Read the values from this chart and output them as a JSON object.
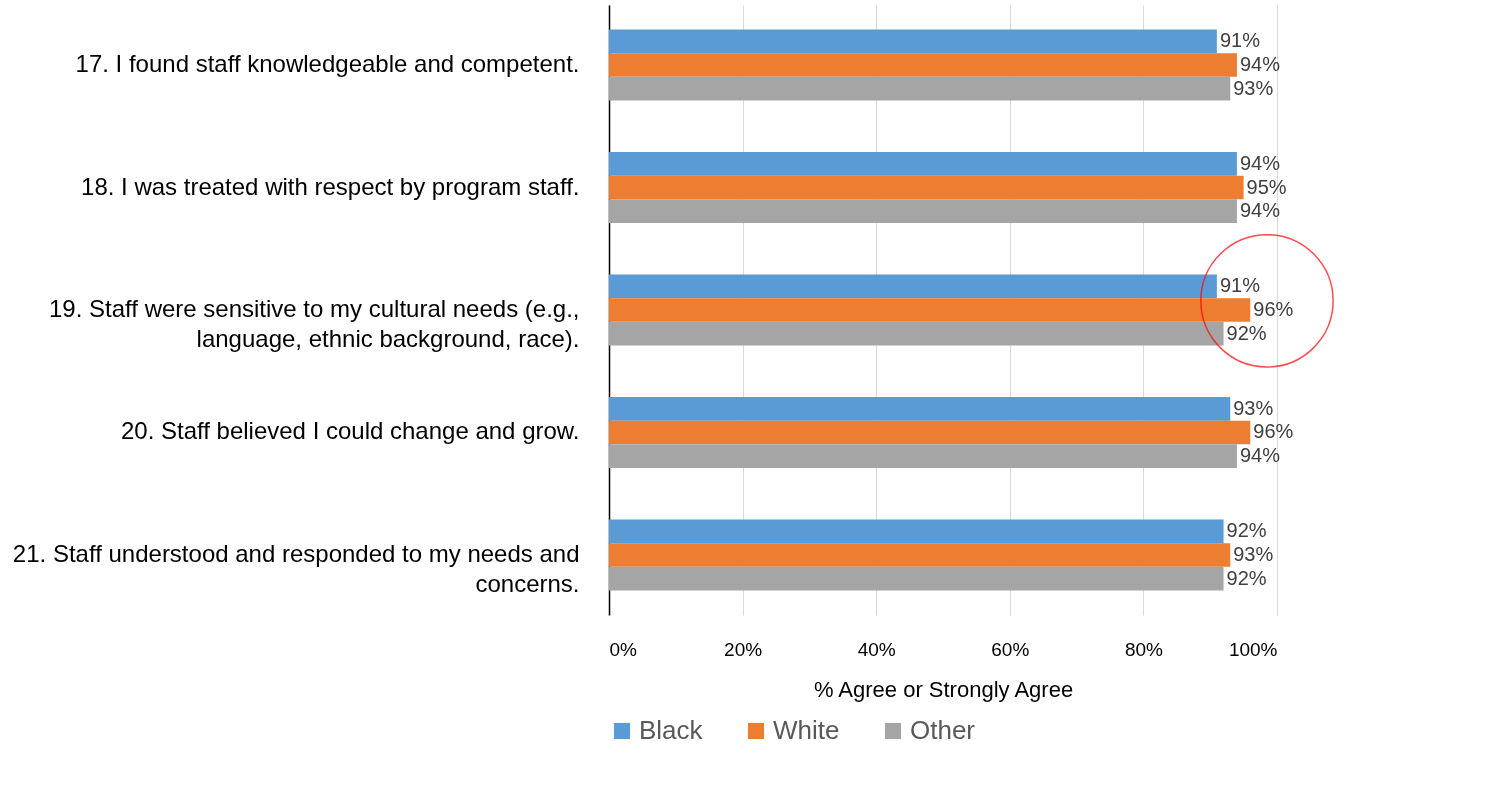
{
  "chart_data": {
    "type": "bar",
    "orientation": "horizontal",
    "xlabel": "% Agree or Strongly Agree",
    "categories": [
      "17. I found staff knowledgeable and competent.",
      "18. I was treated with respect by program staff.",
      "19. Staff were sensitive to my cultural needs (e.g., language, ethnic background, race).",
      "20. Staff believed I could change and grow.",
      "21. Staff  understood and responded to my needs and concerns."
    ],
    "series": [
      {
        "name": "Black",
        "color": "#5b9bd5",
        "values": [
          91,
          94,
          91,
          93,
          92
        ],
        "value_labels": [
          "91%",
          "94%",
          "91%",
          "93%",
          "92%"
        ]
      },
      {
        "name": "White",
        "color": "#ed7d31",
        "values": [
          94,
          95,
          96,
          96,
          93
        ],
        "value_labels": [
          "94%",
          "95%",
          "96%",
          "96%",
          "93%"
        ]
      },
      {
        "name": "Other",
        "color": "#a5a5a5",
        "values": [
          93,
          94,
          92,
          94,
          92
        ],
        "value_labels": [
          "93%",
          "94%",
          "92%",
          "94%",
          "92%"
        ]
      }
    ],
    "xlim": [
      0,
      100
    ],
    "xticks": [
      {
        "value": 0,
        "label": "0%"
      },
      {
        "value": 20,
        "label": "20%"
      },
      {
        "value": 40,
        "label": "40%"
      },
      {
        "value": 60,
        "label": "60%"
      },
      {
        "value": 80,
        "label": "80%"
      },
      {
        "value": 100,
        "label": "100%"
      }
    ],
    "grid": "x",
    "legend": "bottom"
  }
}
